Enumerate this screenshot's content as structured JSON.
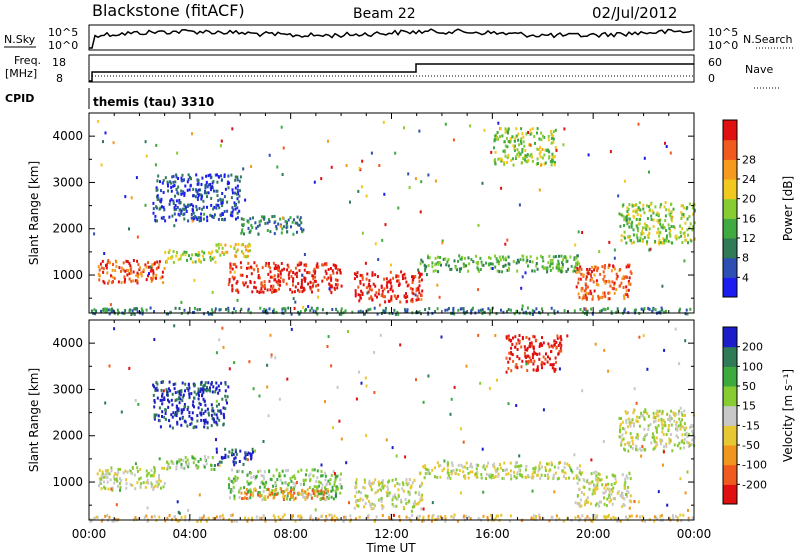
{
  "header": {
    "station": "Blackstone (fitACF)",
    "beam": "Beam 22",
    "date": "02/Jul/2012"
  },
  "sky_noise_panel": {
    "left_label": "N.Sky",
    "right_label": "N.Search",
    "ticks": [
      "10^5",
      "10^0"
    ]
  },
  "freq_panel": {
    "left_label_1": "Freq.",
    "left_label_2": "[MHz]",
    "left_ticks": [
      "18",
      "8"
    ],
    "right_label": "Nave",
    "right_ticks": [
      "60",
      "0"
    ]
  },
  "cpid_panel": {
    "label": "CPID",
    "program": "themis (tau) 3310"
  },
  "chart_data": [
    {
      "type": "heatmap",
      "name": "power",
      "ylabel": "Slant Range [km]",
      "xlabel": "",
      "x_ticks": [
        "00:00",
        "04:00",
        "08:00",
        "12:00",
        "16:00",
        "20:00",
        "00:00"
      ],
      "y_ticks": [
        "1000",
        "2000",
        "3000",
        "4000"
      ],
      "ylim": [
        180,
        4500
      ],
      "colorbar": {
        "label": "Power [dB]",
        "ticks": [
          "4",
          "8",
          "12",
          "16",
          "20",
          "24",
          "28"
        ],
        "colors": [
          "#1c1cf0",
          "#2d4fb4",
          "#2f7a57",
          "#3faa3f",
          "#88cc33",
          "#f0c81e",
          "#f59a1e",
          "#f05a1e",
          "#e01010"
        ]
      },
      "regions": [
        {
          "t0": 0.3,
          "t1": 3.0,
          "r0": 850,
          "r1": 1350,
          "level": 7
        },
        {
          "t0": 3.0,
          "t1": 5.0,
          "r0": 1300,
          "r1": 1600,
          "level": 4
        },
        {
          "t0": 5.0,
          "t1": 6.5,
          "r0": 1400,
          "r1": 1700,
          "level": 5
        },
        {
          "t0": 5.5,
          "t1": 10.0,
          "r0": 650,
          "r1": 1300,
          "level": 8
        },
        {
          "t0": 6.0,
          "t1": 8.5,
          "r0": 1900,
          "r1": 2300,
          "level": 2
        },
        {
          "t0": 10.5,
          "t1": 13.2,
          "r0": 450,
          "r1": 1100,
          "level": 8
        },
        {
          "t0": 13.0,
          "t1": 19.5,
          "r0": 1100,
          "r1": 1450,
          "level": 3
        },
        {
          "t0": 19.3,
          "t1": 21.5,
          "r0": 500,
          "r1": 1250,
          "level": 7
        },
        {
          "t0": 21.0,
          "t1": 24.0,
          "r0": 1700,
          "r1": 2600,
          "level": 4
        },
        {
          "t0": 0,
          "t1": 24.0,
          "r0": 180,
          "r1": 320,
          "level": 2
        },
        {
          "t0": 2.5,
          "t1": 6.0,
          "r0": 2200,
          "r1": 3200,
          "level": 1
        },
        {
          "t0": 16.0,
          "t1": 18.5,
          "r0": 3400,
          "r1": 4200,
          "level": 4
        }
      ]
    },
    {
      "type": "heatmap",
      "name": "velocity",
      "ylabel": "Slant Range [km]",
      "xlabel": "Time UT",
      "x_ticks": [
        "00:00",
        "04:00",
        "08:00",
        "12:00",
        "16:00",
        "20:00",
        "00:00"
      ],
      "y_ticks": [
        "1000",
        "2000",
        "3000",
        "4000"
      ],
      "ylim": [
        180,
        4500
      ],
      "colorbar": {
        "label": "Velocity [m s⁻¹]",
        "ticks": [
          "200",
          "100",
          "50",
          "15",
          "-15",
          "-50",
          "-100",
          "-200"
        ],
        "colors": [
          "#1c1cc8",
          "#2f7a57",
          "#3caa3c",
          "#88cc33",
          "#c8c8c8",
          "#e8c832",
          "#f0961e",
          "#f05a1e",
          "#e01010"
        ]
      },
      "regions": [
        {
          "t0": 0.3,
          "t1": 3.0,
          "r0": 850,
          "r1": 1350,
          "level": 4
        },
        {
          "t0": 3.0,
          "t1": 5.0,
          "r0": 1300,
          "r1": 1600,
          "level": 3
        },
        {
          "t0": 5.0,
          "t1": 6.5,
          "r0": 1400,
          "r1": 1750,
          "level": 0
        },
        {
          "t0": 5.5,
          "t1": 10.0,
          "r0": 650,
          "r1": 1300,
          "level": 3
        },
        {
          "t0": 6.0,
          "t1": 9.5,
          "r0": 650,
          "r1": 900,
          "level": 6
        },
        {
          "t0": 10.5,
          "t1": 13.2,
          "r0": 450,
          "r1": 1100,
          "level": 4
        },
        {
          "t0": 13.0,
          "t1": 19.5,
          "r0": 1100,
          "r1": 1450,
          "level": 4
        },
        {
          "t0": 19.3,
          "t1": 21.5,
          "r0": 500,
          "r1": 1250,
          "level": 4
        },
        {
          "t0": 21.0,
          "t1": 24.0,
          "r0": 1700,
          "r1": 2600,
          "level": 4
        },
        {
          "t0": 0,
          "t1": 24.0,
          "r0": 180,
          "r1": 320,
          "level": 5
        },
        {
          "t0": 2.5,
          "t1": 5.5,
          "r0": 2200,
          "r1": 3200,
          "level": 0
        },
        {
          "t0": 16.5,
          "t1": 18.7,
          "r0": 3400,
          "r1": 4200,
          "level": 8
        }
      ]
    }
  ],
  "time_axis": {
    "ticks": [
      "00:00",
      "04:00",
      "08:00",
      "12:00",
      "16:00",
      "20:00",
      "00:00"
    ],
    "label": "Time UT"
  }
}
